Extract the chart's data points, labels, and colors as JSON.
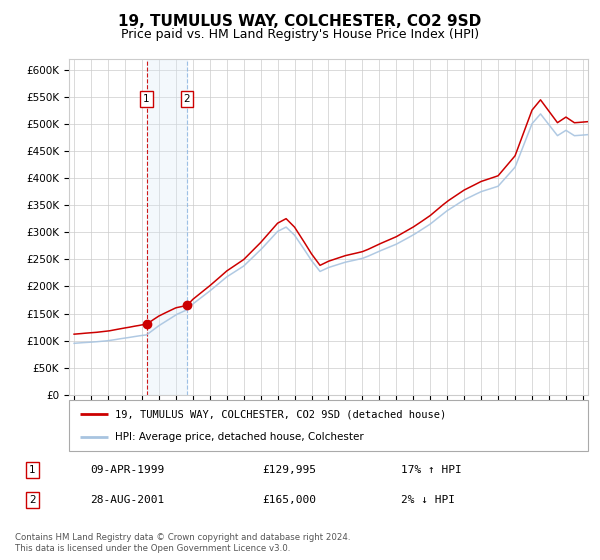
{
  "title": "19, TUMULUS WAY, COLCHESTER, CO2 9SD",
  "subtitle": "Price paid vs. HM Land Registry's House Price Index (HPI)",
  "title_fontsize": 11,
  "subtitle_fontsize": 9,
  "ylim": [
    0,
    620000
  ],
  "yticks": [
    0,
    50000,
    100000,
    150000,
    200000,
    250000,
    300000,
    350000,
    400000,
    450000,
    500000,
    550000,
    600000
  ],
  "ytick_labels": [
    "£0",
    "£50K",
    "£100K",
    "£150K",
    "£200K",
    "£250K",
    "£300K",
    "£350K",
    "£400K",
    "£450K",
    "£500K",
    "£550K",
    "£600K"
  ],
  "hpi_color": "#a8c4e0",
  "price_color": "#cc0000",
  "marker_color": "#cc0000",
  "vline1_color": "#cc0000",
  "vline2_color": "#7aaadd",
  "shade_color": "#d8eaf8",
  "grid_color": "#cccccc",
  "bg_color": "#ffffff",
  "sale1_date": "09-APR-1999",
  "sale1_price": 129995,
  "sale1_hpi": "17% ↑ HPI",
  "sale1_year": 1999.27,
  "sale2_date": "28-AUG-2001",
  "sale2_price": 165000,
  "sale2_hpi": "2% ↓ HPI",
  "sale2_year": 2001.65,
  "footer": "Contains HM Land Registry data © Crown copyright and database right 2024.\nThis data is licensed under the Open Government Licence v3.0.",
  "legend_line1": "19, TUMULUS WAY, COLCHESTER, CO2 9SD (detached house)",
  "legend_line2": "HPI: Average price, detached house, Colchester",
  "xlim_left": 1994.7,
  "xlim_right": 2025.3
}
